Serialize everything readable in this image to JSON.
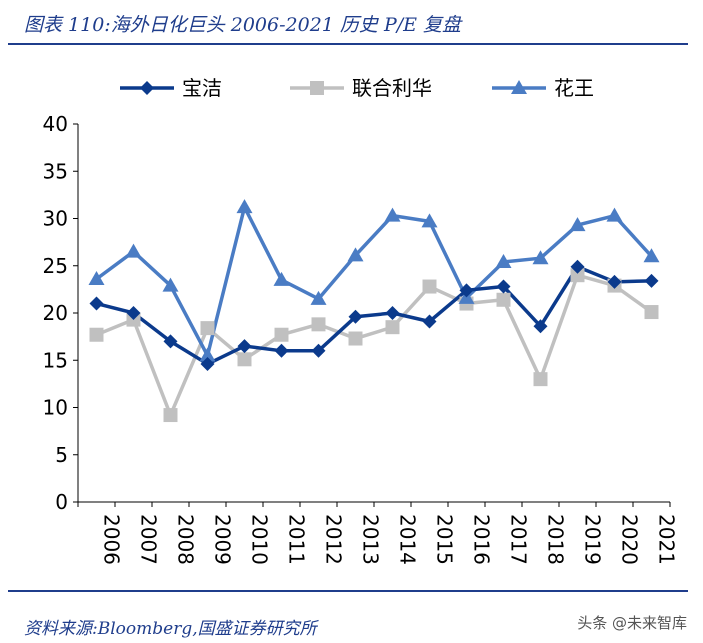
{
  "header": {
    "title": "图表 110:海外日化巨头 2006-2021 历史 P/E 复盘"
  },
  "footer": {
    "source": "资料来源:Bloomberg,国盛证券研究所",
    "watermark": "头条 @未来智库"
  },
  "colors": {
    "accent": "#1f3d8c",
    "pg": "#0b3a8c",
    "unilever": "#c0c0c0",
    "kao": "#4a7cc4"
  },
  "chart_data": {
    "type": "line",
    "title": "",
    "xlabel": "",
    "ylabel": "",
    "ylim": [
      0,
      40
    ],
    "yticks": [
      "0",
      "5",
      "10",
      "15",
      "20",
      "25",
      "30",
      "35",
      "40"
    ],
    "grid": false,
    "legend_position": "top",
    "categories": [
      "2006",
      "2007",
      "2008",
      "2009",
      "2010",
      "2011",
      "2012",
      "2013",
      "2014",
      "2015",
      "2016",
      "2017",
      "2018",
      "2019",
      "2020",
      "2021"
    ],
    "series": [
      {
        "name": "宝洁",
        "marker": "diamond",
        "color": "#0b3a8c",
        "values": [
          21.0,
          20.0,
          17.0,
          14.6,
          16.5,
          16.0,
          16.0,
          19.6,
          20.0,
          19.1,
          22.4,
          22.8,
          18.6,
          24.9,
          23.3,
          23.4
        ]
      },
      {
        "name": "联合利华",
        "marker": "square",
        "color": "#c0c0c0",
        "values": [
          17.7,
          19.3,
          9.2,
          18.4,
          15.1,
          17.7,
          18.8,
          17.3,
          18.5,
          22.8,
          21.0,
          21.4,
          13.0,
          24.0,
          22.9,
          20.1
        ]
      },
      {
        "name": "花王",
        "marker": "triangle",
        "color": "#4a7cc4",
        "values": [
          23.6,
          26.5,
          22.9,
          15.5,
          31.2,
          23.5,
          21.5,
          26.1,
          30.3,
          29.7,
          21.6,
          25.4,
          25.8,
          29.3,
          30.3,
          26.0
        ]
      }
    ]
  }
}
